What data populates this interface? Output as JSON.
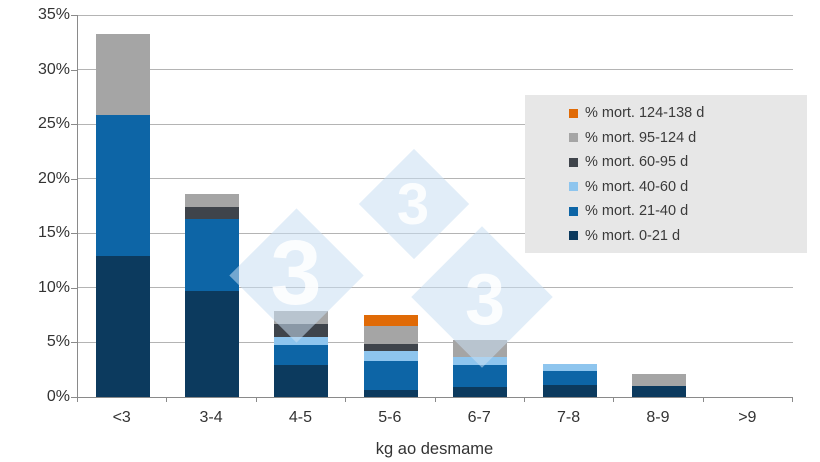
{
  "chart_data": {
    "type": "bar",
    "stacked": true,
    "title": "",
    "xlabel": "kg ao desmame",
    "ylabel": "",
    "ylim": [
      0,
      35
    ],
    "ytick_step": 5,
    "ytick_labels": [
      "0%",
      "5%",
      "10%",
      "15%",
      "20%",
      "25%",
      "30%",
      "35%"
    ],
    "grid": "horizontal",
    "legend_position": "upper-right-box",
    "categories": [
      "<3",
      "3-4",
      "4-5",
      "5-6",
      "6-7",
      "7-8",
      "8-9",
      ">9"
    ],
    "series": [
      {
        "name": "% mort. 0-21 d",
        "color": "#0c3a5e",
        "values": [
          12.9,
          9.7,
          2.9,
          0.6,
          0.9,
          1.1,
          1.0,
          0
        ]
      },
      {
        "name": "% mort. 21-40 d",
        "color": "#0d65a6",
        "values": [
          12.9,
          6.6,
          1.9,
          2.7,
          2.0,
          1.3,
          0,
          0
        ]
      },
      {
        "name": "% mort. 40-60 d",
        "color": "#8ec5ee",
        "values": [
          0,
          0,
          0.7,
          0.9,
          0.8,
          0.6,
          0,
          0
        ]
      },
      {
        "name": "% mort. 60-95 d",
        "color": "#3f444b",
        "values": [
          0,
          1.1,
          1.2,
          0.7,
          0,
          0,
          0,
          0
        ]
      },
      {
        "name": "% mort. 95-124 d",
        "color": "#a5a5a5",
        "values": [
          7.5,
          1.2,
          1.2,
          1.6,
          1.5,
          0,
          1.1,
          0
        ]
      },
      {
        "name": "% mort. 124-138 d",
        "color": "#e06a06",
        "values": [
          0,
          0,
          0,
          1.0,
          0,
          0,
          0,
          0
        ]
      }
    ],
    "totals": [
      33.3,
      18.6,
      7.9,
      7.5,
      5.2,
      3.0,
      2.1,
      0
    ]
  },
  "watermark": {
    "glyph": "3",
    "color": "#cfe1f3"
  }
}
